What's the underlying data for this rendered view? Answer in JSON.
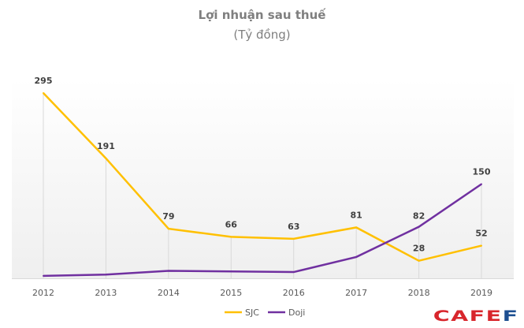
{
  "chart_data": {
    "type": "line",
    "title": "Lợi nhuận sau thuế",
    "subtitle": "(Tỷ đồng)",
    "categories": [
      "2012",
      "2013",
      "2014",
      "2015",
      "2016",
      "2017",
      "2018",
      "2019"
    ],
    "series": [
      {
        "name": "SJC",
        "color": "#ffc000",
        "values": [
          295,
          191,
          79,
          66,
          63,
          81,
          28,
          52
        ],
        "labels": [
          "295",
          "191",
          "79",
          "66",
          "63",
          "81",
          "28",
          "52"
        ]
      },
      {
        "name": "Doji",
        "color": "#7030a0",
        "values": [
          4,
          6,
          12,
          11,
          10,
          34,
          82,
          150
        ],
        "labels": [
          null,
          null,
          null,
          null,
          null,
          null,
          "82",
          "150"
        ]
      }
    ],
    "ylim": [
      0,
      300
    ],
    "grid": "vertical drop lines",
    "legend": "bottom"
  },
  "logo": {
    "text": "CAFEF",
    "colors": [
      "#d8262c",
      "#1d4f91"
    ]
  }
}
